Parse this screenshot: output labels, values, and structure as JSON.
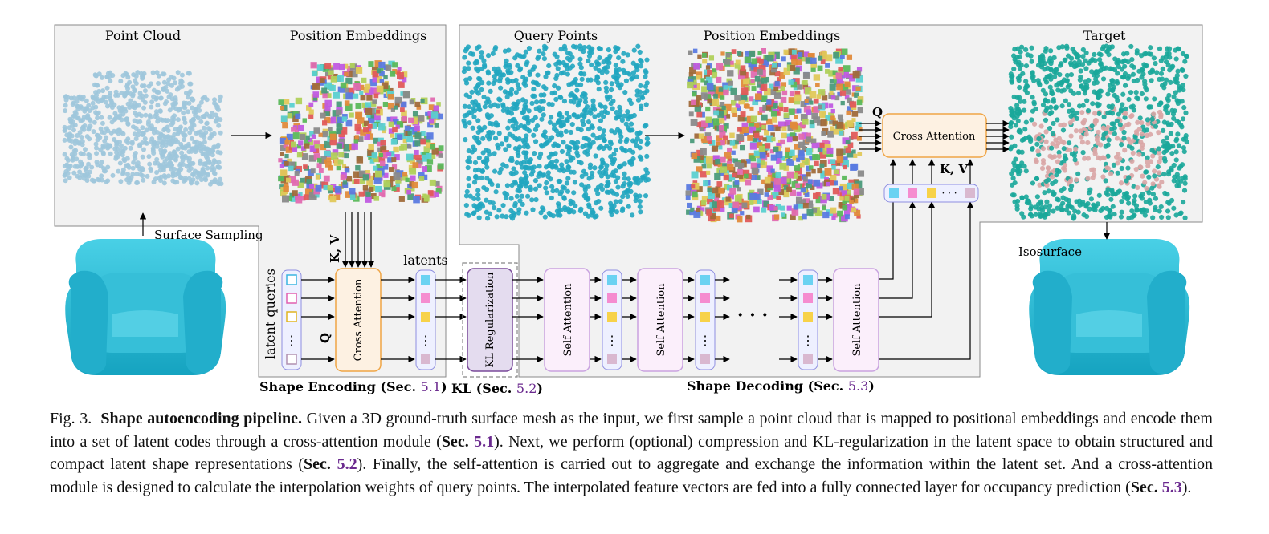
{
  "figure": {
    "labels": {
      "point_cloud": "Point Cloud",
      "position_embeddings_left": "Position Embeddings",
      "query_points": "Query Points",
      "position_embeddings_right": "Position Embeddings",
      "target": "Target",
      "surface_sampling": "Surface Sampling",
      "isosurface": "Isosurface",
      "latent_queries": "latent queries",
      "latents": "latents",
      "kv_left": "K, V",
      "q_left": "Q",
      "q_right": "Q",
      "kv_right": "K, V",
      "dots": "· · ·",
      "vdots": "⋮"
    },
    "blocks": {
      "cross_attention_enc": "Cross Attention",
      "kl_regularization": "KL Regularization",
      "self_attention": "Self Attention",
      "cross_attention_dec": "Cross Attention"
    },
    "section_labels": {
      "shape_encoding": "Shape Encoding (Sec. ",
      "shape_encoding_num": "5.1",
      "kl": "KL (Sec. ",
      "kl_num": "5.2",
      "shape_decoding": "Shape Decoding (Sec. ",
      "shape_decoding_num": "5.3",
      "close": ")"
    },
    "colors": {
      "cyan": "#2ab0c8",
      "light_blue_pts": "#a9cde0",
      "teal_pts": "#1aa79a",
      "pink_pts": "#d9a5a5",
      "orange_block": "#f0a545",
      "purple_block": "#c9a2e0",
      "sec_num": "#6b2a8f"
    }
  },
  "caption": {
    "fig_label": "Fig. 3.",
    "title": "Shape autoencoding pipeline.",
    "t1": " Given a 3D ground-truth surface mesh as the input, we first sample a point cloud that is mapped to positional embeddings and encode them into a set of latent codes through a cross-attention module (",
    "sec": "Sec.",
    "n1": "5.1",
    "t2": "). Next, we perform (optional) compression and KL-regularization in the latent space to obtain structured and compact latent shape representations (",
    "n2": "5.2",
    "t3": "). Finally, the self-attention is carried out to aggregate and exchange the information within the latent set. And a cross-attention module is designed to calculate the interpolation weights of query points. The interpolated feature vectors are fed into a fully connected layer for occupancy prediction (",
    "n3": "5.3",
    "t4": ")."
  }
}
